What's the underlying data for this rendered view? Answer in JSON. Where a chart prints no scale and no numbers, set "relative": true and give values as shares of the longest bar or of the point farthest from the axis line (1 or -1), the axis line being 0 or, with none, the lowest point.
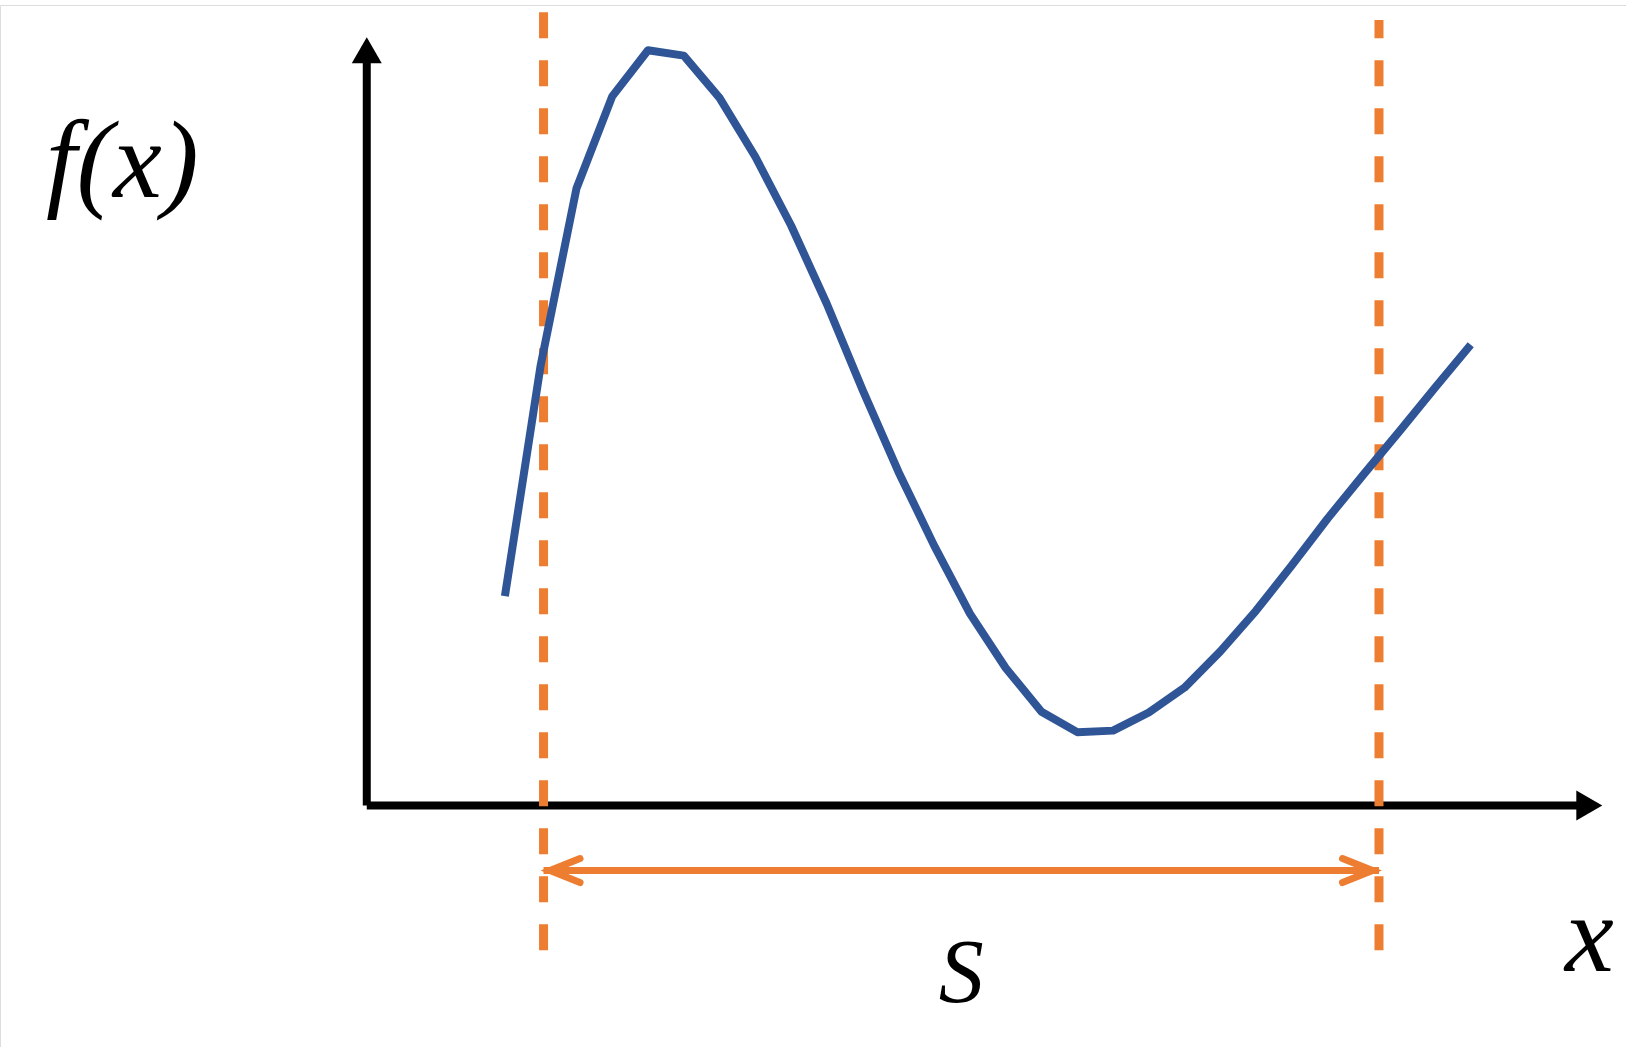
{
  "chart_data": {
    "type": "line",
    "relative": true,
    "xlabel": "x",
    "ylabel": "f(x)",
    "tick_labels": false,
    "categories": [
      null,
      null,
      null,
      null,
      null,
      null,
      null,
      null,
      null,
      null,
      null,
      null,
      null,
      null,
      null,
      null,
      null,
      null,
      null,
      null,
      null,
      null,
      null,
      null,
      null,
      null,
      null,
      null
    ],
    "series": [
      {
        "color": "#2f5597",
        "values": [
          0.277,
          0.583,
          0.817,
          0.939,
          1,
          0.993,
          0.937,
          0.859,
          0.768,
          0.664,
          0.55,
          0.442,
          0.344,
          0.254,
          0.182,
          0.124,
          0.097,
          0.099,
          0.123,
          0.156,
          0.204,
          0.258,
          0.318,
          0.38,
          0.438,
          0.495,
          0.553,
          0.61
        ]
      }
    ],
    "annotations": [
      "S"
    ]
  }
}
